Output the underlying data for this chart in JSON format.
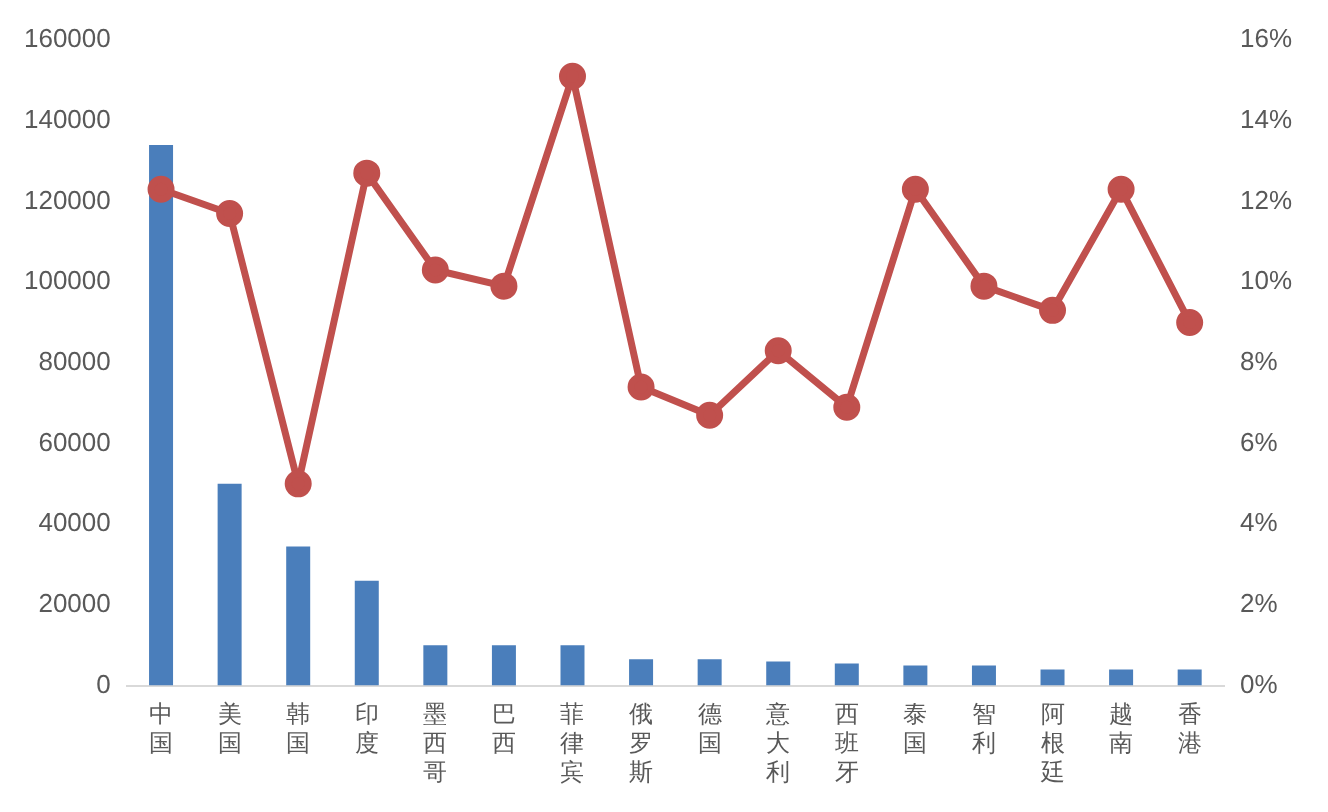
{
  "chart_data": {
    "type": "bar",
    "categories": [
      "中国",
      "美国",
      "韩国",
      "印度",
      "墨西哥",
      "巴西",
      "菲律宾",
      "俄罗斯",
      "德国",
      "意大利",
      "西班牙",
      "泰国",
      "智利",
      "阿根廷",
      "越南",
      "香港"
    ],
    "series": [
      {
        "color": "#4a7ebb",
        "values": [
          134000,
          50000,
          34500,
          26000,
          10000,
          10000,
          10000,
          6500,
          6500,
          6000,
          5500,
          5000,
          5000,
          4000,
          4000,
          4000
        ]
      },
      {
        "type": "line",
        "axis": "y2",
        "color": "#c0504d",
        "marker": "circle",
        "values": [
          12.3,
          11.7,
          5.0,
          12.7,
          10.3,
          9.9,
          15.1,
          7.4,
          6.7,
          8.3,
          6.9,
          12.3,
          9.9,
          9.3,
          12.3,
          9.0
        ]
      }
    ],
    "ylim": [
      0,
      160000
    ],
    "yticks": [
      0,
      20000,
      40000,
      60000,
      80000,
      100000,
      120000,
      140000,
      160000
    ],
    "y2lim": [
      0,
      16
    ],
    "y2ticks": [
      {
        "value": 0,
        "label": "0%"
      },
      {
        "value": 2,
        "label": "2%"
      },
      {
        "value": 4,
        "label": "4%"
      },
      {
        "value": 6,
        "label": "6%"
      },
      {
        "value": 8,
        "label": "8%"
      },
      {
        "value": 10,
        "label": "10%"
      },
      {
        "value": 12,
        "label": "12%"
      },
      {
        "value": 14,
        "label": "14%"
      },
      {
        "value": 16,
        "label": "16%"
      }
    ],
    "grid": false,
    "legend": false
  }
}
